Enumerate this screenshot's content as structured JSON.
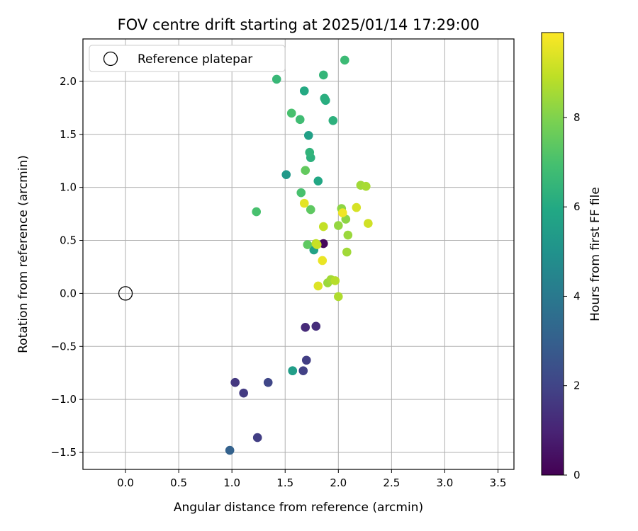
{
  "chart_data": {
    "type": "scatter",
    "title": "FOV centre drift starting at 2025/01/14 17:29:00",
    "xlabel": "Angular distance from reference (arcmin)",
    "ylabel": "Rotation from reference (arcmin)",
    "xlim": [
      -0.4,
      3.65
    ],
    "ylim": [
      -1.66,
      2.4
    ],
    "xticks": [
      "0.0",
      "0.5",
      "1.0",
      "1.5",
      "2.0",
      "2.5",
      "3.0",
      "3.5"
    ],
    "xtick_values": [
      0.0,
      0.5,
      1.0,
      1.5,
      2.0,
      2.5,
      3.0,
      3.5
    ],
    "yticks": [
      "−1.5",
      "−1.0",
      "−0.5",
      "0.0",
      "0.5",
      "1.0",
      "1.5",
      "2.0"
    ],
    "ytick_values": [
      -1.5,
      -1.0,
      -0.5,
      0.0,
      0.5,
      1.0,
      1.5,
      2.0
    ],
    "grid": true,
    "legend": {
      "placement": "top-left",
      "entries": [
        "Reference platepar"
      ]
    },
    "reference_point": {
      "name": "Reference platepar",
      "x": 0.0,
      "y": 0.0
    },
    "colorbar": {
      "label": "Hours from first FF file",
      "colormap": "viridis",
      "range": [
        0,
        9.9
      ],
      "ticks": [
        "0",
        "2",
        "4",
        "6",
        "8"
      ],
      "tick_values": [
        0,
        2,
        4,
        6,
        8
      ]
    },
    "points": [
      {
        "x": 1.86,
        "y": 0.47,
        "c": 0.2
      },
      {
        "x": 1.69,
        "y": -0.32,
        "c": 1.2
      },
      {
        "x": 1.79,
        "y": -0.31,
        "c": 1.3
      },
      {
        "x": 1.7,
        "y": -0.63,
        "c": 1.8
      },
      {
        "x": 1.67,
        "y": -0.73,
        "c": 1.9
      },
      {
        "x": 1.03,
        "y": -0.84,
        "c": 1.6
      },
      {
        "x": 1.11,
        "y": -0.94,
        "c": 1.7
      },
      {
        "x": 1.34,
        "y": -0.84,
        "c": 2.1
      },
      {
        "x": 1.24,
        "y": -1.36,
        "c": 1.8
      },
      {
        "x": 0.98,
        "y": -1.48,
        "c": 3.1
      },
      {
        "x": 1.57,
        "y": -0.73,
        "c": 5.2
      },
      {
        "x": 1.57,
        "y": -0.73,
        "c": 5.5
      },
      {
        "x": 1.72,
        "y": 1.49,
        "c": 5.6
      },
      {
        "x": 1.51,
        "y": 1.12,
        "c": 5.3
      },
      {
        "x": 1.77,
        "y": 0.41,
        "c": 5.7
      },
      {
        "x": 1.81,
        "y": 1.06,
        "c": 5.9
      },
      {
        "x": 1.74,
        "y": 1.28,
        "c": 6.3
      },
      {
        "x": 1.73,
        "y": 1.33,
        "c": 6.4
      },
      {
        "x": 1.88,
        "y": 1.82,
        "c": 6.1
      },
      {
        "x": 1.87,
        "y": 1.84,
        "c": 6.2
      },
      {
        "x": 1.68,
        "y": 1.91,
        "c": 6.0
      },
      {
        "x": 1.95,
        "y": 1.63,
        "c": 6.3
      },
      {
        "x": 1.86,
        "y": 2.06,
        "c": 6.5
      },
      {
        "x": 1.42,
        "y": 2.02,
        "c": 6.6
      },
      {
        "x": 2.06,
        "y": 2.2,
        "c": 6.7
      },
      {
        "x": 1.64,
        "y": 1.64,
        "c": 6.8
      },
      {
        "x": 1.56,
        "y": 1.7,
        "c": 7.0
      },
      {
        "x": 1.65,
        "y": 0.95,
        "c": 7.0
      },
      {
        "x": 1.23,
        "y": 0.77,
        "c": 7.0
      },
      {
        "x": 1.69,
        "y": 1.16,
        "c": 7.5
      },
      {
        "x": 1.74,
        "y": 0.79,
        "c": 7.4
      },
      {
        "x": 1.71,
        "y": 0.46,
        "c": 7.4
      },
      {
        "x": 2.03,
        "y": 0.8,
        "c": 8.2
      },
      {
        "x": 2.0,
        "y": 0.64,
        "c": 8.3
      },
      {
        "x": 2.07,
        "y": 0.7,
        "c": 8.2
      },
      {
        "x": 2.09,
        "y": 0.55,
        "c": 8.4
      },
      {
        "x": 2.08,
        "y": 0.39,
        "c": 8.5
      },
      {
        "x": 2.21,
        "y": 1.02,
        "c": 8.5
      },
      {
        "x": 2.26,
        "y": 1.01,
        "c": 8.6
      },
      {
        "x": 1.79,
        "y": 0.47,
        "c": 8.9
      },
      {
        "x": 1.9,
        "y": 0.1,
        "c": 8.4
      },
      {
        "x": 1.93,
        "y": 0.13,
        "c": 8.5
      },
      {
        "x": 1.97,
        "y": 0.12,
        "c": 8.8
      },
      {
        "x": 2.0,
        "y": -0.03,
        "c": 8.7
      },
      {
        "x": 1.86,
        "y": 0.63,
        "c": 9.0
      },
      {
        "x": 2.28,
        "y": 0.66,
        "c": 9.2
      },
      {
        "x": 2.17,
        "y": 0.81,
        "c": 9.3
      },
      {
        "x": 1.68,
        "y": 0.85,
        "c": 9.5
      },
      {
        "x": 2.04,
        "y": 0.76,
        "c": 9.7
      },
      {
        "x": 1.85,
        "y": 0.31,
        "c": 9.6
      },
      {
        "x": 1.81,
        "y": 0.07,
        "c": 9.4
      },
      {
        "x": 1.8,
        "y": 0.46,
        "c": 9.1
      }
    ]
  }
}
